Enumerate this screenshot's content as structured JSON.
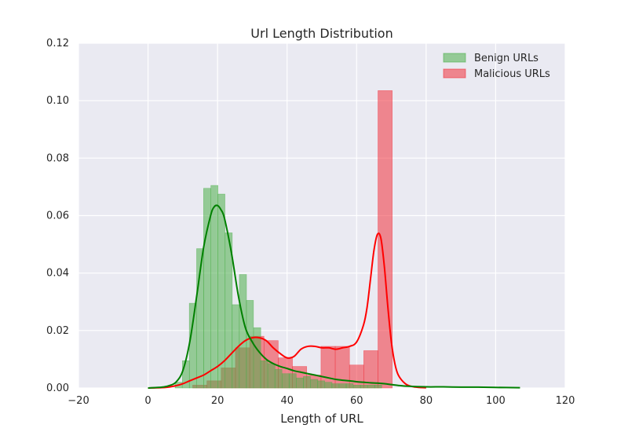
{
  "chart_data": {
    "type": "histogram",
    "title": "Url Length Distribution",
    "xlabel": "Length of URL",
    "ylabel": "",
    "xlim": [
      -20,
      120
    ],
    "ylim": [
      0,
      0.12
    ],
    "xticks": [
      -20,
      0,
      20,
      40,
      60,
      80,
      100,
      120
    ],
    "xtick_labels": [
      "−20",
      "0",
      "20",
      "40",
      "60",
      "80",
      "100",
      "120"
    ],
    "yticks": [
      0,
      0.02,
      0.04,
      0.06,
      0.08,
      0.1,
      0.12
    ],
    "ytick_labels": [
      "0.00",
      "0.02",
      "0.04",
      "0.06",
      "0.08",
      "0.10",
      "0.12"
    ],
    "grid": true,
    "legend_position": "top-right",
    "series": [
      {
        "name": "Benign URLs",
        "color": "#4daf4a",
        "line_color": "#008000",
        "bin_width": 2.05,
        "bins": [
          {
            "x": 8.8,
            "y": 0.002
          },
          {
            "x": 10.9,
            "y": 0.0095
          },
          {
            "x": 12.9,
            "y": 0.0295
          },
          {
            "x": 15.0,
            "y": 0.0485
          },
          {
            "x": 17.0,
            "y": 0.0695
          },
          {
            "x": 19.1,
            "y": 0.0705
          },
          {
            "x": 21.1,
            "y": 0.0675
          },
          {
            "x": 23.2,
            "y": 0.054
          },
          {
            "x": 25.2,
            "y": 0.029
          },
          {
            "x": 27.3,
            "y": 0.0395
          },
          {
            "x": 29.3,
            "y": 0.0305
          },
          {
            "x": 31.4,
            "y": 0.021
          },
          {
            "x": 33.4,
            "y": 0.0095
          },
          {
            "x": 35.5,
            "y": 0.0085
          },
          {
            "x": 37.5,
            "y": 0.0065
          },
          {
            "x": 39.6,
            "y": 0.005
          },
          {
            "x": 41.6,
            "y": 0.005
          },
          {
            "x": 43.7,
            "y": 0.0035
          },
          {
            "x": 45.7,
            "y": 0.004
          },
          {
            "x": 47.8,
            "y": 0.003
          },
          {
            "x": 49.8,
            "y": 0.0025
          },
          {
            "x": 51.9,
            "y": 0.002
          },
          {
            "x": 53.9,
            "y": 0.0015
          },
          {
            "x": 56.0,
            "y": 0.0015
          },
          {
            "x": 58.0,
            "y": 0.0015
          },
          {
            "x": 60.1,
            "y": 0.001
          },
          {
            "x": 62.1,
            "y": 0.001
          },
          {
            "x": 64.2,
            "y": 0.001
          },
          {
            "x": 66.2,
            "y": 0.001
          }
        ],
        "kde": {
          "x": [
            0,
            4,
            6,
            8,
            10,
            12,
            14,
            16,
            18,
            19,
            20,
            21,
            22,
            24,
            26,
            28,
            30,
            32,
            34,
            36,
            38,
            40,
            42,
            44,
            46,
            48,
            50,
            52,
            54,
            56,
            58,
            60,
            62,
            64,
            66,
            68,
            70,
            72,
            75,
            80,
            85,
            90,
            95,
            100,
            107
          ],
          "y": [
            0,
            0.0003,
            0.0008,
            0.002,
            0.006,
            0.016,
            0.032,
            0.049,
            0.06,
            0.063,
            0.0635,
            0.062,
            0.059,
            0.047,
            0.032,
            0.021,
            0.016,
            0.0125,
            0.01,
            0.0085,
            0.0075,
            0.0068,
            0.006,
            0.0055,
            0.005,
            0.0045,
            0.004,
            0.0035,
            0.003,
            0.0027,
            0.0025,
            0.0022,
            0.002,
            0.0018,
            0.0017,
            0.0015,
            0.0012,
            0.0009,
            0.0006,
            0.0004,
            0.0004,
            0.0003,
            0.0003,
            0.0002,
            0.0001
          ]
        }
      },
      {
        "name": "Malicious URLs",
        "color": "#f0323c",
        "line_color": "#ff0000",
        "bin_width": 4.1,
        "bins": [
          {
            "x": 14.9,
            "y": 0.001
          },
          {
            "x": 19.0,
            "y": 0.0025
          },
          {
            "x": 23.1,
            "y": 0.007
          },
          {
            "x": 27.2,
            "y": 0.014
          },
          {
            "x": 31.3,
            "y": 0.018
          },
          {
            "x": 35.4,
            "y": 0.0165
          },
          {
            "x": 39.5,
            "y": 0.0105
          },
          {
            "x": 43.6,
            "y": 0.0075
          },
          {
            "x": 47.7,
            "y": 0.0045
          },
          {
            "x": 51.8,
            "y": 0.0145
          },
          {
            "x": 55.9,
            "y": 0.0145
          },
          {
            "x": 60.0,
            "y": 0.008
          },
          {
            "x": 64.1,
            "y": 0.013
          },
          {
            "x": 68.2,
            "y": 0.1035
          }
        ],
        "kde": {
          "x": [
            0,
            5,
            8,
            10,
            12,
            14,
            16,
            18,
            20,
            22,
            24,
            26,
            28,
            30,
            32,
            34,
            36,
            38,
            40,
            42,
            44,
            46,
            48,
            50,
            52,
            54,
            56,
            58,
            60,
            62,
            63,
            64,
            65,
            66,
            67,
            68,
            69,
            70,
            71,
            72,
            74,
            76,
            78,
            80
          ],
          "y": [
            0,
            0.0002,
            0.0008,
            0.0015,
            0.0025,
            0.0035,
            0.0045,
            0.006,
            0.0075,
            0.0095,
            0.012,
            0.0145,
            0.0165,
            0.0175,
            0.0175,
            0.0165,
            0.014,
            0.012,
            0.0105,
            0.011,
            0.0135,
            0.0145,
            0.0145,
            0.014,
            0.014,
            0.0135,
            0.014,
            0.0145,
            0.016,
            0.022,
            0.028,
            0.038,
            0.048,
            0.0535,
            0.052,
            0.042,
            0.028,
            0.016,
            0.0085,
            0.0045,
            0.0015,
            0.0005,
            0.0002,
            0.0001
          ]
        }
      }
    ]
  }
}
